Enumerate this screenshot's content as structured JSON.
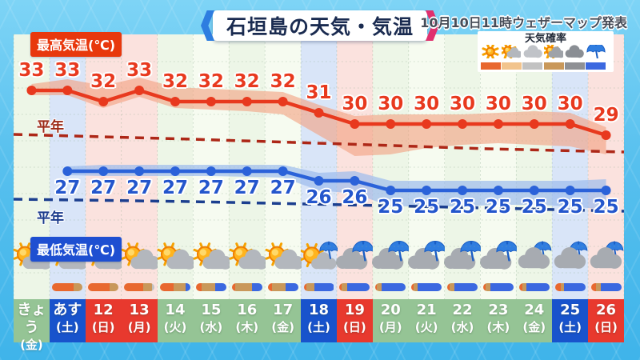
{
  "header": {
    "title": "石垣島の天気・気温",
    "issued": "10月10日11時ウェザーマップ発表"
  },
  "labels": {
    "max_temp": "最高気温(℃)",
    "min_temp": "最低気温(℃)",
    "normal": "平年",
    "legend_title": "天気確率"
  },
  "legend": {
    "items": [
      {
        "icon": "sun",
        "color": "#e8682f"
      },
      {
        "icon": "sun-cloud",
        "color": "#f2c48d"
      },
      {
        "icon": "cloud",
        "color": "#c2c2c2"
      },
      {
        "icon": "cloud-sun",
        "color": "#c9985a"
      },
      {
        "icon": "dark-cloud",
        "color": "#8f9094"
      },
      {
        "icon": "umbrella",
        "color": "#3b68e0"
      }
    ]
  },
  "colors": {
    "stripe_weekday_a": "#edf6e7",
    "stripe_weekday_b": "#f6fbf0",
    "stripe_saturday": "#d9e5f8",
    "stripe_sunday": "#fbe2de",
    "date_weekday": "#95c495",
    "date_saturday": "#1853cc",
    "date_sunday": "#e8392e",
    "max_line": "#e8391e",
    "min_line": "#2b62d9",
    "max_band": "#f2a183",
    "min_band": "#9dbcec",
    "normal_max_line": "#ad2717",
    "normal_min_line": "#1c3f8f",
    "bar_sunny": "#e8682f",
    "bar_partly": "#c9985a",
    "bar_cloudy": "#c2c2c2",
    "bar_rain": "#3b68e0"
  },
  "columns": [
    {
      "date": "きょう",
      "dow": "(金)",
      "day_type": "weekday",
      "icon": "sun-cloud",
      "bar": []
    },
    {
      "date": "あす",
      "dow": "(土)",
      "day_type": "saturday",
      "icon": "sun-cloud",
      "bar": [
        [
          "sunny",
          70
        ],
        [
          "partly",
          30
        ]
      ]
    },
    {
      "date": "12",
      "dow": "(日)",
      "day_type": "sunday",
      "icon": "sun-cloud",
      "bar": [
        [
          "sunny",
          70
        ],
        [
          "partly",
          30
        ]
      ]
    },
    {
      "date": "13",
      "dow": "(月)",
      "day_type": "sunday",
      "icon": "sun-cloud",
      "bar": [
        [
          "sunny",
          62
        ],
        [
          "partly",
          30
        ],
        [
          "cloudy",
          8
        ]
      ]
    },
    {
      "date": "14",
      "dow": "(火)",
      "day_type": "weekday",
      "icon": "sun-cloud",
      "bar": [
        [
          "sunny",
          45
        ],
        [
          "partly",
          38
        ],
        [
          "rain",
          17
        ]
      ]
    },
    {
      "date": "15",
      "dow": "(水)",
      "day_type": "weekday",
      "icon": "sun-cloud",
      "bar": [
        [
          "sunny",
          18
        ],
        [
          "partly",
          45
        ],
        [
          "rain",
          37
        ]
      ]
    },
    {
      "date": "16",
      "dow": "(木)",
      "day_type": "weekday",
      "icon": "sun-cloud",
      "bar": [
        [
          "sunny",
          12
        ],
        [
          "partly",
          55
        ],
        [
          "rain",
          33
        ]
      ]
    },
    {
      "date": "17",
      "dow": "(金)",
      "day_type": "weekday",
      "icon": "sun-cloud",
      "bar": [
        [
          "sunny",
          15
        ],
        [
          "partly",
          45
        ],
        [
          "rain",
          40
        ]
      ]
    },
    {
      "date": "18",
      "dow": "(土)",
      "day_type": "saturday",
      "icon": "sun-cloud-umbrella",
      "bar": [
        [
          "sunny",
          10
        ],
        [
          "partly",
          25
        ],
        [
          "rain",
          65
        ]
      ]
    },
    {
      "date": "19",
      "dow": "(日)",
      "day_type": "sunday",
      "icon": "cloud-umbrella",
      "bar": [
        [
          "sunny",
          8
        ],
        [
          "partly",
          17
        ],
        [
          "rain",
          75
        ]
      ]
    },
    {
      "date": "20",
      "dow": "(月)",
      "day_type": "weekday",
      "icon": "cloud-umbrella",
      "bar": [
        [
          "sunny",
          5
        ],
        [
          "partly",
          15
        ],
        [
          "rain",
          80
        ]
      ]
    },
    {
      "date": "21",
      "dow": "(火)",
      "day_type": "weekday",
      "icon": "cloud-umbrella",
      "bar": [
        [
          "sunny",
          8
        ],
        [
          "partly",
          12
        ],
        [
          "rain",
          80
        ]
      ]
    },
    {
      "date": "22",
      "dow": "(水)",
      "day_type": "weekday",
      "icon": "cloud-umbrella",
      "bar": [
        [
          "sunny",
          8
        ],
        [
          "partly",
          17
        ],
        [
          "rain",
          75
        ]
      ]
    },
    {
      "date": "23",
      "dow": "(木)",
      "day_type": "weekday",
      "icon": "cloud-umbrella",
      "bar": [
        [
          "sunny",
          8
        ],
        [
          "partly",
          17
        ],
        [
          "rain",
          75
        ]
      ]
    },
    {
      "date": "24",
      "dow": "(金)",
      "day_type": "weekday",
      "icon": "cloud-umbrella-small",
      "bar": [
        [
          "sunny",
          10
        ],
        [
          "partly",
          15
        ],
        [
          "rain",
          75
        ]
      ]
    },
    {
      "date": "25",
      "dow": "(土)",
      "day_type": "saturday",
      "icon": "cloud-umbrella-small",
      "bar": [
        [
          "sunny",
          18
        ],
        [
          "partly",
          12
        ],
        [
          "rain",
          70
        ]
      ]
    },
    {
      "date": "26",
      "dow": "(日)",
      "day_type": "sunday",
      "icon": "cloud-umbrella-small",
      "bar": [
        [
          "sunny",
          18
        ],
        [
          "partly",
          15
        ],
        [
          "rain",
          67
        ]
      ]
    }
  ],
  "chart_data": {
    "type": "line",
    "title": "石垣島の天気・気温",
    "categories": [
      "きょう(金)",
      "あす(土)",
      "12(日)",
      "13(月)",
      "14(火)",
      "15(水)",
      "16(木)",
      "17(金)",
      "18(土)",
      "19(日)",
      "20(月)",
      "21(火)",
      "22(水)",
      "23(木)",
      "24(金)",
      "25(土)",
      "26(日)"
    ],
    "series": [
      {
        "name": "最高気温(℃)",
        "color": "#e8391e",
        "values": [
          33,
          33,
          32,
          33,
          32,
          32,
          32,
          32,
          31,
          30,
          30,
          30,
          30,
          30,
          30,
          30,
          29
        ]
      },
      {
        "name": "最低気温(℃)",
        "color": "#2b62d9",
        "values": [
          null,
          27,
          27,
          27,
          27,
          27,
          27,
          27,
          26,
          26,
          25,
          25,
          25,
          25,
          25,
          25,
          25
        ]
      }
    ],
    "normals": {
      "label": "平年",
      "note": "dashed climatological-normal guide lines for max and min temperature, gently declining left to right"
    },
    "uncertainty_bands": true,
    "legend_position": "top-right",
    "grid": "dotted"
  }
}
